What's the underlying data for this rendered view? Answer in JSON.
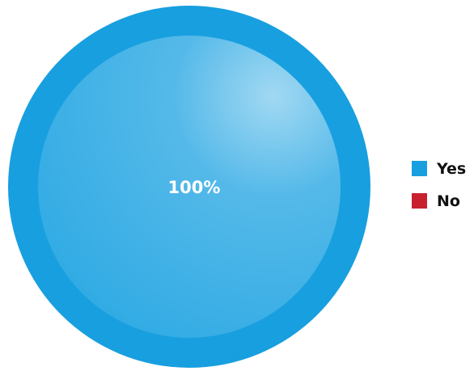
{
  "chart_data": {
    "type": "pie",
    "categories": [
      "Yes",
      "No"
    ],
    "values": [
      100,
      0
    ],
    "colors": [
      "#189FDF",
      "#C8202F"
    ],
    "data_labels": [
      "100%",
      ""
    ],
    "legend": {
      "position": "right",
      "items": [
        {
          "label": "Yes",
          "color": "#189FDF"
        },
        {
          "label": "No",
          "color": "#C8202F"
        }
      ]
    }
  }
}
